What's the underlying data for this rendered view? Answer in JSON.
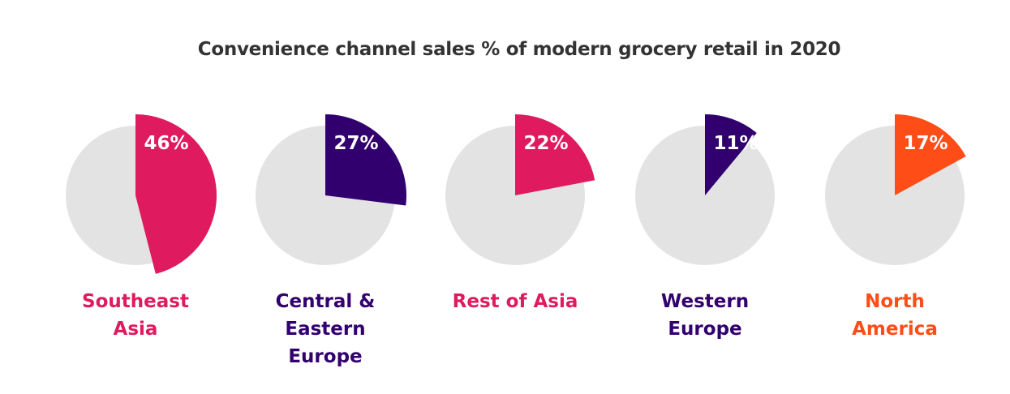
{
  "chart_data": {
    "type": "pie",
    "title": "Convenience channel sales % of modern grocery retail in 2020",
    "background_color": "#e3e3e3",
    "value_label_color": "#ffffff",
    "title_color": "#333333",
    "charts": [
      {
        "category": "Southeast Asia",
        "value": 46,
        "value_label": "46%",
        "color": "#e01a5e"
      },
      {
        "category": "Central & Eastern Europe",
        "value": 27,
        "value_label": "27%",
        "color": "#32006e"
      },
      {
        "category": "Rest of Asia",
        "value": 22,
        "value_label": "22%",
        "color": "#e01a5e"
      },
      {
        "category": "Western Europe",
        "value": 11,
        "value_label": "11%",
        "color": "#32006e"
      },
      {
        "category": "North America",
        "value": 17,
        "value_label": "17%",
        "color": "#ff4d17"
      }
    ],
    "labels": [
      "Southeast\nAsia",
      "Central &\nEastern\nEurope",
      "Rest of Asia",
      "Western\nEurope",
      "North\nAmerica"
    ]
  }
}
